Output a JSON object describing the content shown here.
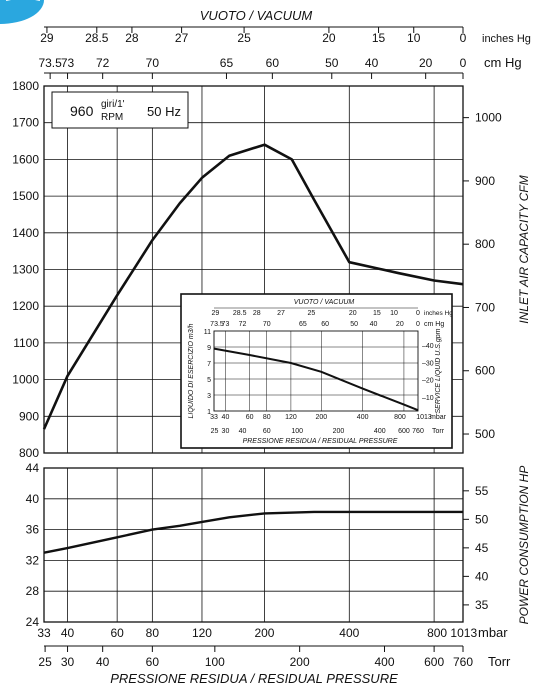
{
  "chart_data": [
    {
      "type": "line",
      "name_text": "main-capacity",
      "series": [
        {
          "x": [
            33,
            40,
            60,
            80,
            100,
            120,
            150,
            200,
            250,
            300,
            400,
            600,
            800,
            1013
          ],
          "y": [
            865,
            1010,
            1230,
            1380,
            1480,
            1550,
            1610,
            1640,
            1600,
            1490,
            1320,
            1290,
            1270,
            1260
          ]
        }
      ],
      "x_scale": "log",
      "xlim": [
        33,
        1013
      ],
      "ylim_left": [
        800,
        1800
      ],
      "ylim_right": [
        470,
        1050
      ],
      "left_ticks": [
        "800",
        "900",
        "1000",
        "1100",
        "1200",
        "1300",
        "1400",
        "1500",
        "1600",
        "1700",
        "1800"
      ],
      "right_ticks": [
        "500",
        "600",
        "700",
        "800",
        "900",
        "1000"
      ],
      "right_label": "INLET AIR CAPACITY CFM",
      "badge": {
        "speed": "960",
        "giri": "giri/1'",
        "rpm": "RPM",
        "freq": "50 Hz"
      }
    },
    {
      "type": "line",
      "name_text": "power",
      "series": [
        {
          "x": [
            33,
            40,
            60,
            80,
            100,
            120,
            150,
            200,
            300,
            400,
            600,
            800,
            1013
          ],
          "y": [
            33.0,
            33.6,
            35.0,
            36.0,
            36.5,
            37.0,
            37.6,
            38.1,
            38.3,
            38.3,
            38.3,
            38.3,
            38.3
          ]
        }
      ],
      "ylim_left": [
        24,
        44
      ],
      "left_ticks": [
        "24",
        "28",
        "32",
        "36",
        "40",
        "44"
      ],
      "right_ticks": [
        "35",
        "40",
        "45",
        "50",
        "55"
      ],
      "right_range": [
        32,
        59
      ],
      "right_label": "POWER CONSUMPTION HP"
    },
    {
      "type": "line",
      "name_text": "inset-service-liquid",
      "series": [
        {
          "x": [
            33,
            60,
            120,
            200,
            400,
            800,
            1013
          ],
          "y": [
            8.8,
            8.0,
            7.0,
            5.9,
            3.8,
            1.8,
            1.1
          ]
        }
      ],
      "left_ticks": [
        "1",
        "3",
        "5",
        "7",
        "9",
        "11"
      ],
      "right_ticks": [
        "10",
        "20",
        "30",
        "40"
      ],
      "left_label": "LIQUIDO DI ESERCIZIO m3/h",
      "right_label": "SERVICE LIQUID U.S.gpm",
      "top_title": "VUOTO / VACUUM",
      "top_inhg": [
        "29",
        "28.5",
        "28",
        "27",
        "25",
        "20",
        "15",
        "10",
        "0"
      ],
      "top_cmhg": [
        "73.5",
        "73",
        "72",
        "70",
        "65",
        "60",
        "50",
        "40",
        "20",
        "0"
      ],
      "bottom_mbar": [
        "33",
        "40",
        "60",
        "80",
        "120",
        "200",
        "400",
        "800",
        "1013"
      ],
      "bottom_torr": [
        "25",
        "30",
        "40",
        "60",
        "100",
        "200",
        "400",
        "600",
        "760"
      ],
      "unit_inhg": "inches Hg",
      "unit_cmhg": "cm Hg",
      "unit_mbar": "mbar",
      "unit_torr": "Torr",
      "bottom_title": "PRESSIONE RESIDUA / RESIDUAL PRESSURE"
    }
  ],
  "axes": {
    "top_title": "VUOTO / VACUUM",
    "inhg_ticks": [
      "29",
      "28.5",
      "28",
      "27",
      "25",
      "20",
      "15",
      "10",
      "0"
    ],
    "cmhg_ticks": [
      "73.5",
      "73",
      "72",
      "70",
      "65",
      "60",
      "50",
      "40",
      "20",
      "0"
    ],
    "inhg_unit": "inches Hg",
    "cmhg_unit": "cm Hg",
    "mbar_ticks": [
      "33",
      "40",
      "60",
      "80",
      "120",
      "200",
      "400",
      "800 1013"
    ],
    "mbar_unit": "mbar",
    "torr_ticks": [
      "25",
      "30",
      "40",
      "60",
      "100",
      "200",
      "400",
      "600",
      "760"
    ],
    "torr_unit": "Torr",
    "bottom_title": "PRESSIONE RESIDUA / RESIDUAL PRESSURE"
  }
}
